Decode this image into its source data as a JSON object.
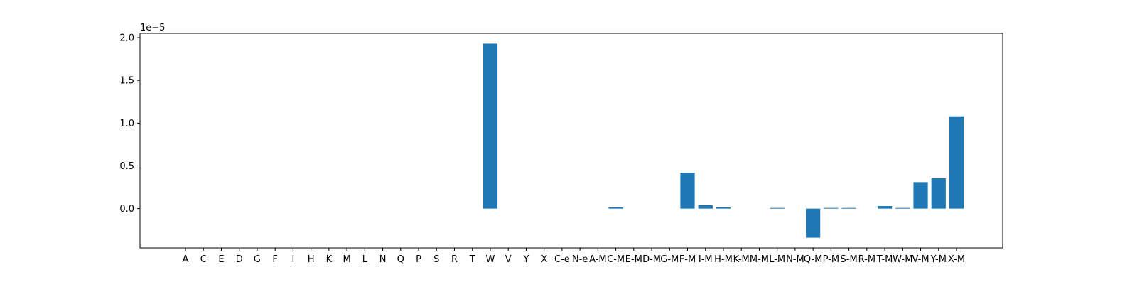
{
  "chart_data": {
    "type": "bar",
    "title": "",
    "xlabel": "",
    "ylabel": "",
    "offset_label": "1e−5",
    "bar_color": "#1f77b4",
    "ylim": [
      -0.46,
      2.05
    ],
    "yticks": [
      0.0,
      0.5,
      1.0,
      1.5,
      2.0
    ],
    "ytick_labels": [
      "0.0",
      "0.5",
      "1.0",
      "1.5",
      "2.0"
    ],
    "categories": [
      "A",
      "C",
      "E",
      "D",
      "G",
      "F",
      "I",
      "H",
      "K",
      "M",
      "L",
      "N",
      "Q",
      "P",
      "S",
      "R",
      "T",
      "W",
      "V",
      "Y",
      "X",
      "C-e",
      "N-e",
      "A-M",
      "C-M",
      "E-M",
      "D-M",
      "G-M",
      "F-M",
      "I-M",
      "H-M",
      "K-M",
      "M-M",
      "L-M",
      "N-M",
      "Q-M",
      "P-M",
      "S-M",
      "R-M",
      "T-M",
      "W-M",
      "V-M",
      "Y-M",
      "X-M"
    ],
    "values": [
      0,
      0,
      0,
      0,
      0,
      0,
      0,
      0,
      0,
      0,
      0,
      0,
      0,
      0,
      0,
      0,
      0,
      1.93,
      0,
      0,
      0,
      0,
      0,
      0,
      0.015,
      0,
      0,
      0,
      0.42,
      0.04,
      0.015,
      0,
      0,
      0.008,
      0,
      -0.34,
      0.008,
      0.008,
      0,
      0.03,
      0.008,
      0.31,
      0.355,
      1.08
    ],
    "value_scale": 1e-05,
    "grid": false
  }
}
